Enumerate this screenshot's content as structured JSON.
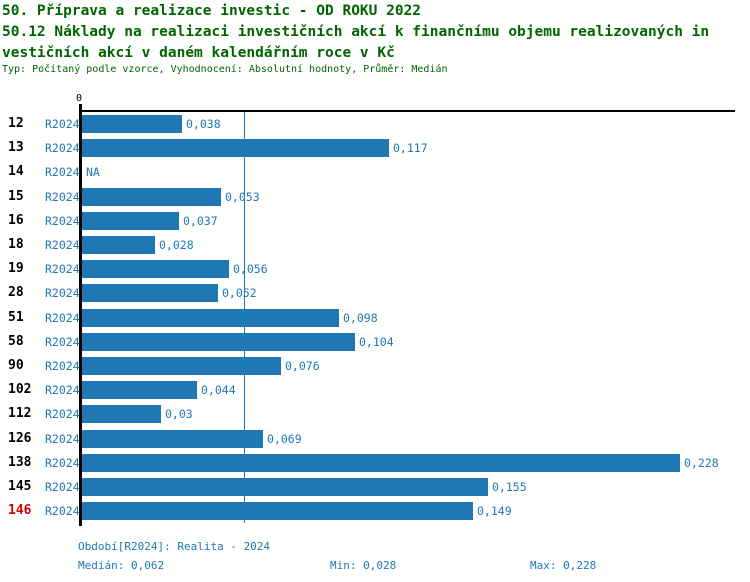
{
  "header": {
    "title": "50. Příprava a realizace investic - OD ROKU 2022",
    "subtitle_line1": "50.12 Náklady na realizaci investičních akcí k finančnímu objemu realizovaných in",
    "subtitle_line2": "vestičních akcí v daném kalendářním roce v Kč",
    "meta": "Typ: Počítaný podle vzorce, Vyhodnocení: Absolutní hodnoty, Průměr: Medián"
  },
  "colors": {
    "heading_green": "#006400",
    "bar_blue": "#1f77b4",
    "highlight_red": "#d40000",
    "axis_black": "#000000"
  },
  "chart_data": {
    "type": "bar",
    "orientation": "horizontal",
    "title": "50.12 Náklady na realizaci investičních akcí k finančnímu objemu realizovaných investičních akcí v daném kalendářním roce v Kč",
    "series_label": "R2024",
    "axis_zero_label": "0",
    "categories": [
      "12",
      "13",
      "14",
      "15",
      "16",
      "18",
      "19",
      "28",
      "51",
      "58",
      "90",
      "102",
      "112",
      "126",
      "138",
      "145",
      "146"
    ],
    "values": [
      0.038,
      0.117,
      null,
      0.053,
      0.037,
      0.028,
      0.056,
      0.052,
      0.098,
      0.104,
      0.076,
      0.044,
      0.03,
      0.069,
      0.228,
      0.155,
      0.149
    ],
    "value_labels": [
      "0,038",
      "0,117",
      "NA",
      "0,053",
      "0,037",
      "0,028",
      "0,056",
      "0,052",
      "0,098",
      "0,104",
      "0,076",
      "0,044",
      "0,03",
      "0,069",
      "0,228",
      "0,155",
      "0,149"
    ],
    "na_label": "NA",
    "highlighted_category": "146",
    "median_line_value": 0.062,
    "xlim": [
      0,
      0.249
    ],
    "grid": false,
    "legend_position": "none"
  },
  "footer": {
    "period": "Období[R2024]: Realita - 2024",
    "median": "Medián: 0,062",
    "min": "Min: 0,028",
    "max": "Max: 0,228"
  }
}
